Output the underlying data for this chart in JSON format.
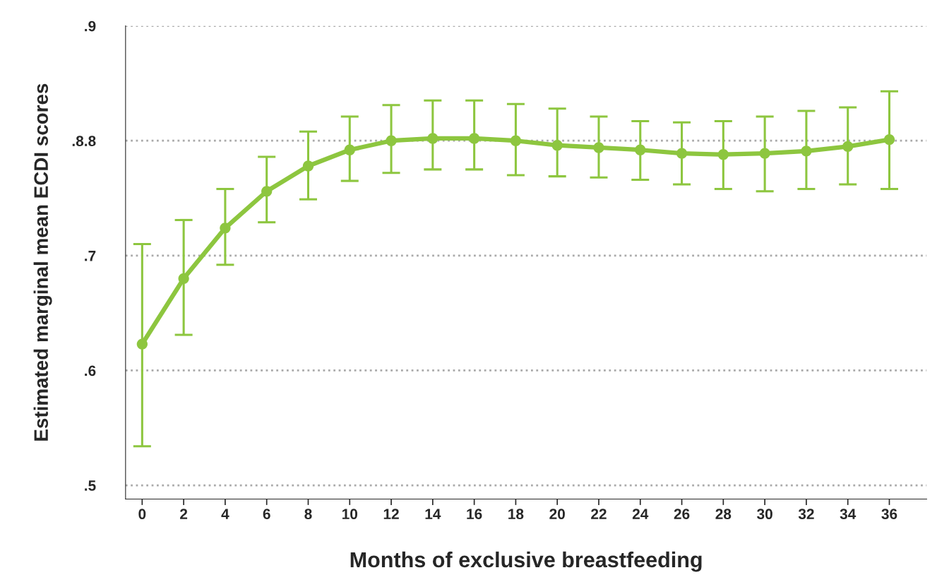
{
  "chart_data": {
    "type": "line",
    "xlabel": "Months of exclusive breastfeeding",
    "ylabel": "Estimated marginal mean ECDI scores",
    "x": [
      0,
      2,
      4,
      6,
      8,
      10,
      12,
      14,
      16,
      18,
      20,
      22,
      24,
      26,
      28,
      30,
      32,
      34,
      36
    ],
    "series": [
      {
        "color": "#8dc63f",
        "values": [
          0.623,
          0.68,
          0.724,
          0.756,
          0.778,
          0.792,
          0.8,
          0.802,
          0.802,
          0.8,
          0.796,
          0.794,
          0.792,
          0.789,
          0.788,
          0.789,
          0.791,
          0.795,
          0.801
        ],
        "errors": [
          [
            0.534,
            0.71
          ],
          [
            0.631,
            0.731
          ],
          [
            0.692,
            0.758
          ],
          [
            0.729,
            0.786
          ],
          [
            0.749,
            0.808
          ],
          [
            0.765,
            0.821
          ],
          [
            0.772,
            0.831
          ],
          [
            0.775,
            0.835
          ],
          [
            0.775,
            0.835
          ],
          [
            0.77,
            0.832
          ],
          [
            0.769,
            0.828
          ],
          [
            0.768,
            0.821
          ],
          [
            0.766,
            0.817
          ],
          [
            0.762,
            0.816
          ],
          [
            0.758,
            0.817
          ],
          [
            0.756,
            0.821
          ],
          [
            0.758,
            0.826
          ],
          [
            0.762,
            0.829
          ],
          [
            0.758,
            0.843
          ]
        ]
      }
    ],
    "xlim": [
      -0.8,
      37.8
    ],
    "xticks": [
      0,
      2,
      4,
      6,
      8,
      10,
      12,
      14,
      16,
      18,
      20,
      22,
      24,
      26,
      28,
      30,
      32,
      34,
      36
    ],
    "ylim": [
      0.488,
      0.9
    ],
    "yticks": [
      {
        "value": 0.5,
        "label": ".5"
      },
      {
        "value": 0.6,
        "label": ".6"
      },
      {
        "value": 0.7,
        "label": ".7"
      },
      {
        "value": 0.8,
        "label": ".8.8"
      },
      {
        "value": 0.9,
        "label": ".9"
      }
    ],
    "grid": "y",
    "marker": "circle",
    "line_style": "solid",
    "legend": false
  }
}
